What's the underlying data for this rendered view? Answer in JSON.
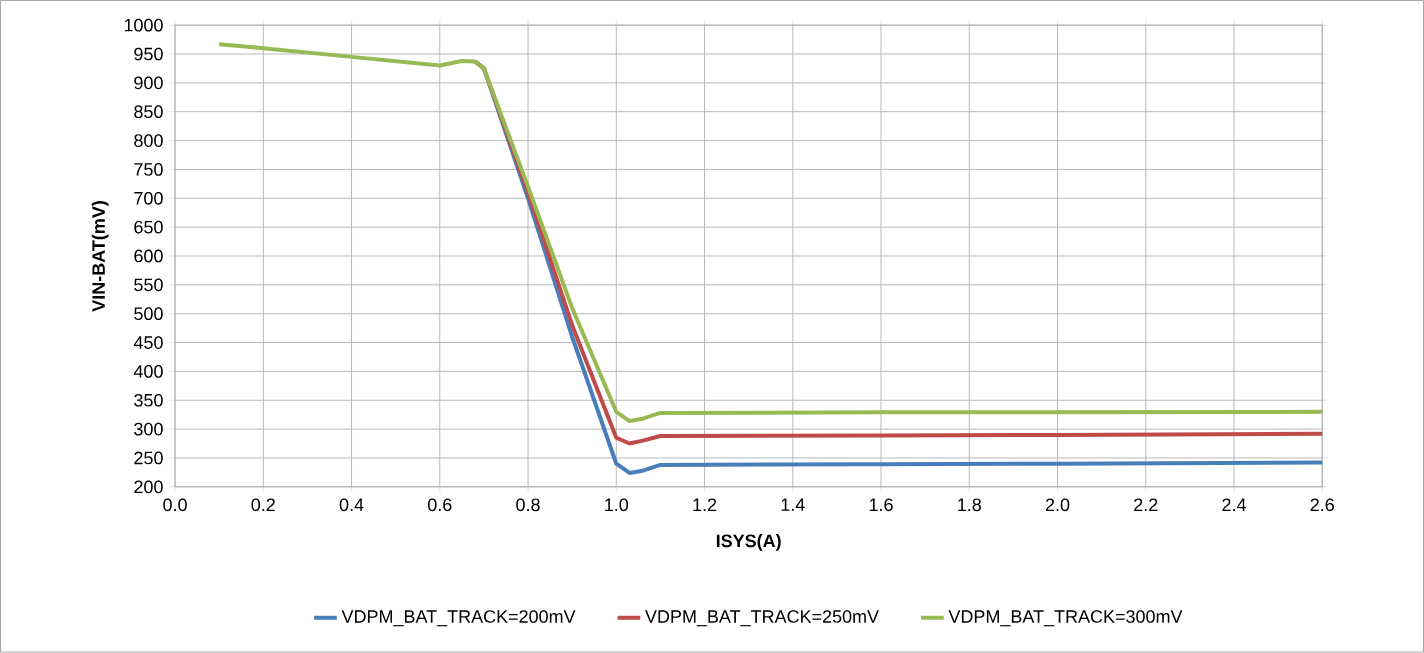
{
  "chart_data": {
    "type": "line",
    "xlabel": "ISYS(A)",
    "ylabel": "VIN-BAT(mV)",
    "xlim": [
      0,
      2.6
    ],
    "ylim": [
      200,
      1000
    ],
    "xticks": [
      {
        "value": 0,
        "label": "0.0"
      },
      {
        "value": 0.2,
        "label": "0.2"
      },
      {
        "value": 0.4,
        "label": "0.4"
      },
      {
        "value": 0.6,
        "label": "0.6"
      },
      {
        "value": 0.8,
        "label": "0.8"
      },
      {
        "value": 1,
        "label": "1.0"
      },
      {
        "value": 1.2,
        "label": "1.2"
      },
      {
        "value": 1.4,
        "label": "1.4"
      },
      {
        "value": 1.6,
        "label": "1.6"
      },
      {
        "value": 1.8,
        "label": "1.8"
      },
      {
        "value": 2,
        "label": "2.0"
      },
      {
        "value": 2.2,
        "label": "2.2"
      },
      {
        "value": 2.4,
        "label": "2.4"
      },
      {
        "value": 2.6,
        "label": "2.6"
      }
    ],
    "yticks": [
      200,
      250,
      300,
      350,
      400,
      450,
      500,
      550,
      600,
      650,
      700,
      750,
      800,
      850,
      900,
      950,
      1000
    ],
    "grid": true,
    "legend": "bottom",
    "marker": "none",
    "line_style": "solid",
    "series": [
      {
        "name": "VDPM_BAT_TRACK=200mV",
        "color": "#4a7ebb",
        "x": [
          0.68,
          0.7,
          0.8,
          0.9,
          1.0,
          1.03,
          1.06,
          1.1,
          1.6,
          2.0,
          2.6
        ],
        "values": [
          937,
          925,
          700,
          460,
          240,
          224,
          228,
          238,
          239,
          240,
          242
        ]
      },
      {
        "name": "VDPM_BAT_TRACK=250mV",
        "color": "#be4b48",
        "x": [
          0.68,
          0.7,
          0.8,
          0.9,
          1.0,
          1.03,
          1.06,
          1.1,
          1.6,
          2.0,
          2.6
        ],
        "values": [
          937,
          925,
          710,
          480,
          285,
          275,
          280,
          288,
          289,
          290,
          292
        ]
      },
      {
        "name": "VDPM_BAT_TRACK=300mV",
        "color": "#98b954",
        "x": [
          0.1,
          0.2,
          0.4,
          0.6,
          0.65,
          0.68,
          0.7,
          0.8,
          0.9,
          1.0,
          1.03,
          1.06,
          1.1,
          1.6,
          2.0,
          2.6
        ],
        "values": [
          967,
          960,
          945,
          930,
          938,
          937,
          925,
          720,
          510,
          330,
          314,
          318,
          328,
          329,
          329,
          330
        ]
      }
    ]
  }
}
